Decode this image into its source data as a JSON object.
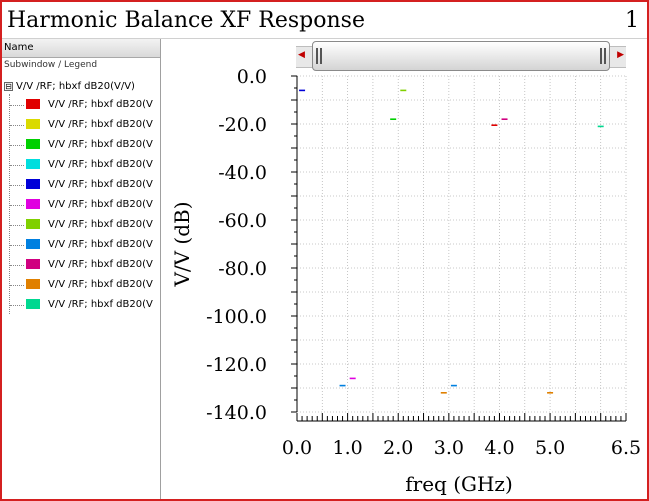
{
  "window": {
    "title": "Harmonic Balance XF Response",
    "page_number": "1"
  },
  "sidebar": {
    "header": "Name",
    "subheader": "Subwindow / Legend",
    "root": {
      "label": "V/V /RF; hbxf dB20(V/V)",
      "expander": "⊟"
    },
    "items": [
      {
        "label": "V/V /RF; hbxf dB20(V",
        "color": "#e00000"
      },
      {
        "label": "V/V /RF; hbxf dB20(V",
        "color": "#dada00"
      },
      {
        "label": "V/V /RF; hbxf dB20(V",
        "color": "#00d000"
      },
      {
        "label": "V/V /RF; hbxf dB20(V",
        "color": "#00dede"
      },
      {
        "label": "V/V /RF; hbxf dB20(V",
        "color": "#0000d8"
      },
      {
        "label": "V/V /RF; hbxf dB20(V",
        "color": "#e000e0"
      },
      {
        "label": "V/V /RF; hbxf dB20(V",
        "color": "#80d000"
      },
      {
        "label": "V/V /RF; hbxf dB20(V",
        "color": "#0080e0"
      },
      {
        "label": "V/V /RF; hbxf dB20(V",
        "color": "#d00080"
      },
      {
        "label": "V/V /RF; hbxf dB20(V",
        "color": "#e08000"
      },
      {
        "label": "V/V /RF; hbxf dB20(V",
        "color": "#00d890"
      }
    ]
  },
  "scrollbar": {
    "left_arrow": "◀",
    "right_arrow": "▶"
  },
  "chart_data": {
    "type": "scatter",
    "title": "",
    "xlabel": "freq (GHz)",
    "ylabel": "V/V (dB)",
    "xlim": [
      0,
      6.5
    ],
    "ylim": [
      -140,
      0
    ],
    "x_ticks": [
      "0.0",
      "1.0",
      "2.0",
      "3.0",
      "4.0",
      "5.0",
      "6.5"
    ],
    "x_tick_values": [
      0.0,
      1.0,
      2.0,
      3.0,
      4.0,
      5.0,
      6.5
    ],
    "y_ticks": [
      "0.0",
      "-20.0",
      "-40.0",
      "-60.0",
      "-80.0",
      "-100.0",
      "-120.0",
      "-140.0"
    ],
    "y_tick_values": [
      0,
      -20,
      -40,
      -60,
      -80,
      -100,
      -120,
      -140
    ],
    "grid": true,
    "points": [
      {
        "x": 0.1,
        "y": -6.0,
        "color": "#0000d8"
      },
      {
        "x": 0.9,
        "y": -129.0,
        "color": "#0080e0"
      },
      {
        "x": 1.1,
        "y": -126.0,
        "color": "#e000e0"
      },
      {
        "x": 1.9,
        "y": -18.0,
        "color": "#00d000"
      },
      {
        "x": 2.1,
        "y": -6.0,
        "color": "#80d000"
      },
      {
        "x": 2.9,
        "y": -132.0,
        "color": "#e08000"
      },
      {
        "x": 3.1,
        "y": -129.0,
        "color": "#0080e0"
      },
      {
        "x": 3.9,
        "y": -20.5,
        "color": "#e00000"
      },
      {
        "x": 4.1,
        "y": -18.0,
        "color": "#d00080"
      },
      {
        "x": 5.0,
        "y": -132.0,
        "color": "#e08000"
      },
      {
        "x": 6.0,
        "y": -21.0,
        "color": "#00d890"
      }
    ]
  }
}
